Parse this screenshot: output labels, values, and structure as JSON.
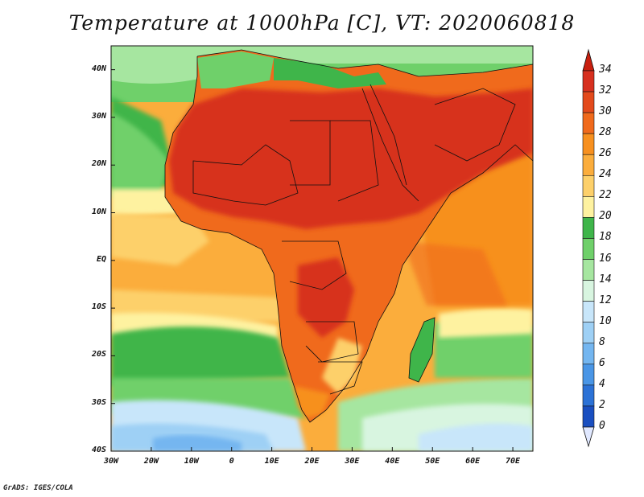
{
  "title": "Temperature at 1000hPa [C], VT: 2020060818",
  "footer": "GrADS: IGES/COLA",
  "map": {
    "y_labels": [
      "40N",
      "30N",
      "20N",
      "10N",
      "EQ",
      "10S",
      "20S",
      "30S",
      "40S"
    ],
    "x_labels": [
      "30W",
      "20W",
      "10W",
      "0",
      "10E",
      "20E",
      "30E",
      "40E",
      "50E",
      "60E",
      "70E"
    ],
    "lat_range": [
      -40,
      45
    ],
    "lon_range": [
      -30,
      75
    ]
  },
  "colorbar": {
    "labels": [
      "34",
      "32",
      "30",
      "28",
      "26",
      "24",
      "22",
      "20",
      "18",
      "16",
      "14",
      "12",
      "10",
      "8",
      "6",
      "4",
      "2",
      "0"
    ],
    "colors": [
      "#d7301f",
      "#e34a1c",
      "#f06a1c",
      "#f7901f",
      "#fbad3c",
      "#fdd06a",
      "#fef2a0",
      "#3fb54a",
      "#6fd06a",
      "#a6e6a0",
      "#d8f5e0",
      "#c8e6fa",
      "#9ed0f5",
      "#74b6f0",
      "#4a96e6",
      "#2c72d6",
      "#1a4fc0",
      "#0c2f96",
      "#06186a"
    ],
    "overflow_high": "#c81e0e",
    "overflow_low": "#e0e8ff"
  }
}
